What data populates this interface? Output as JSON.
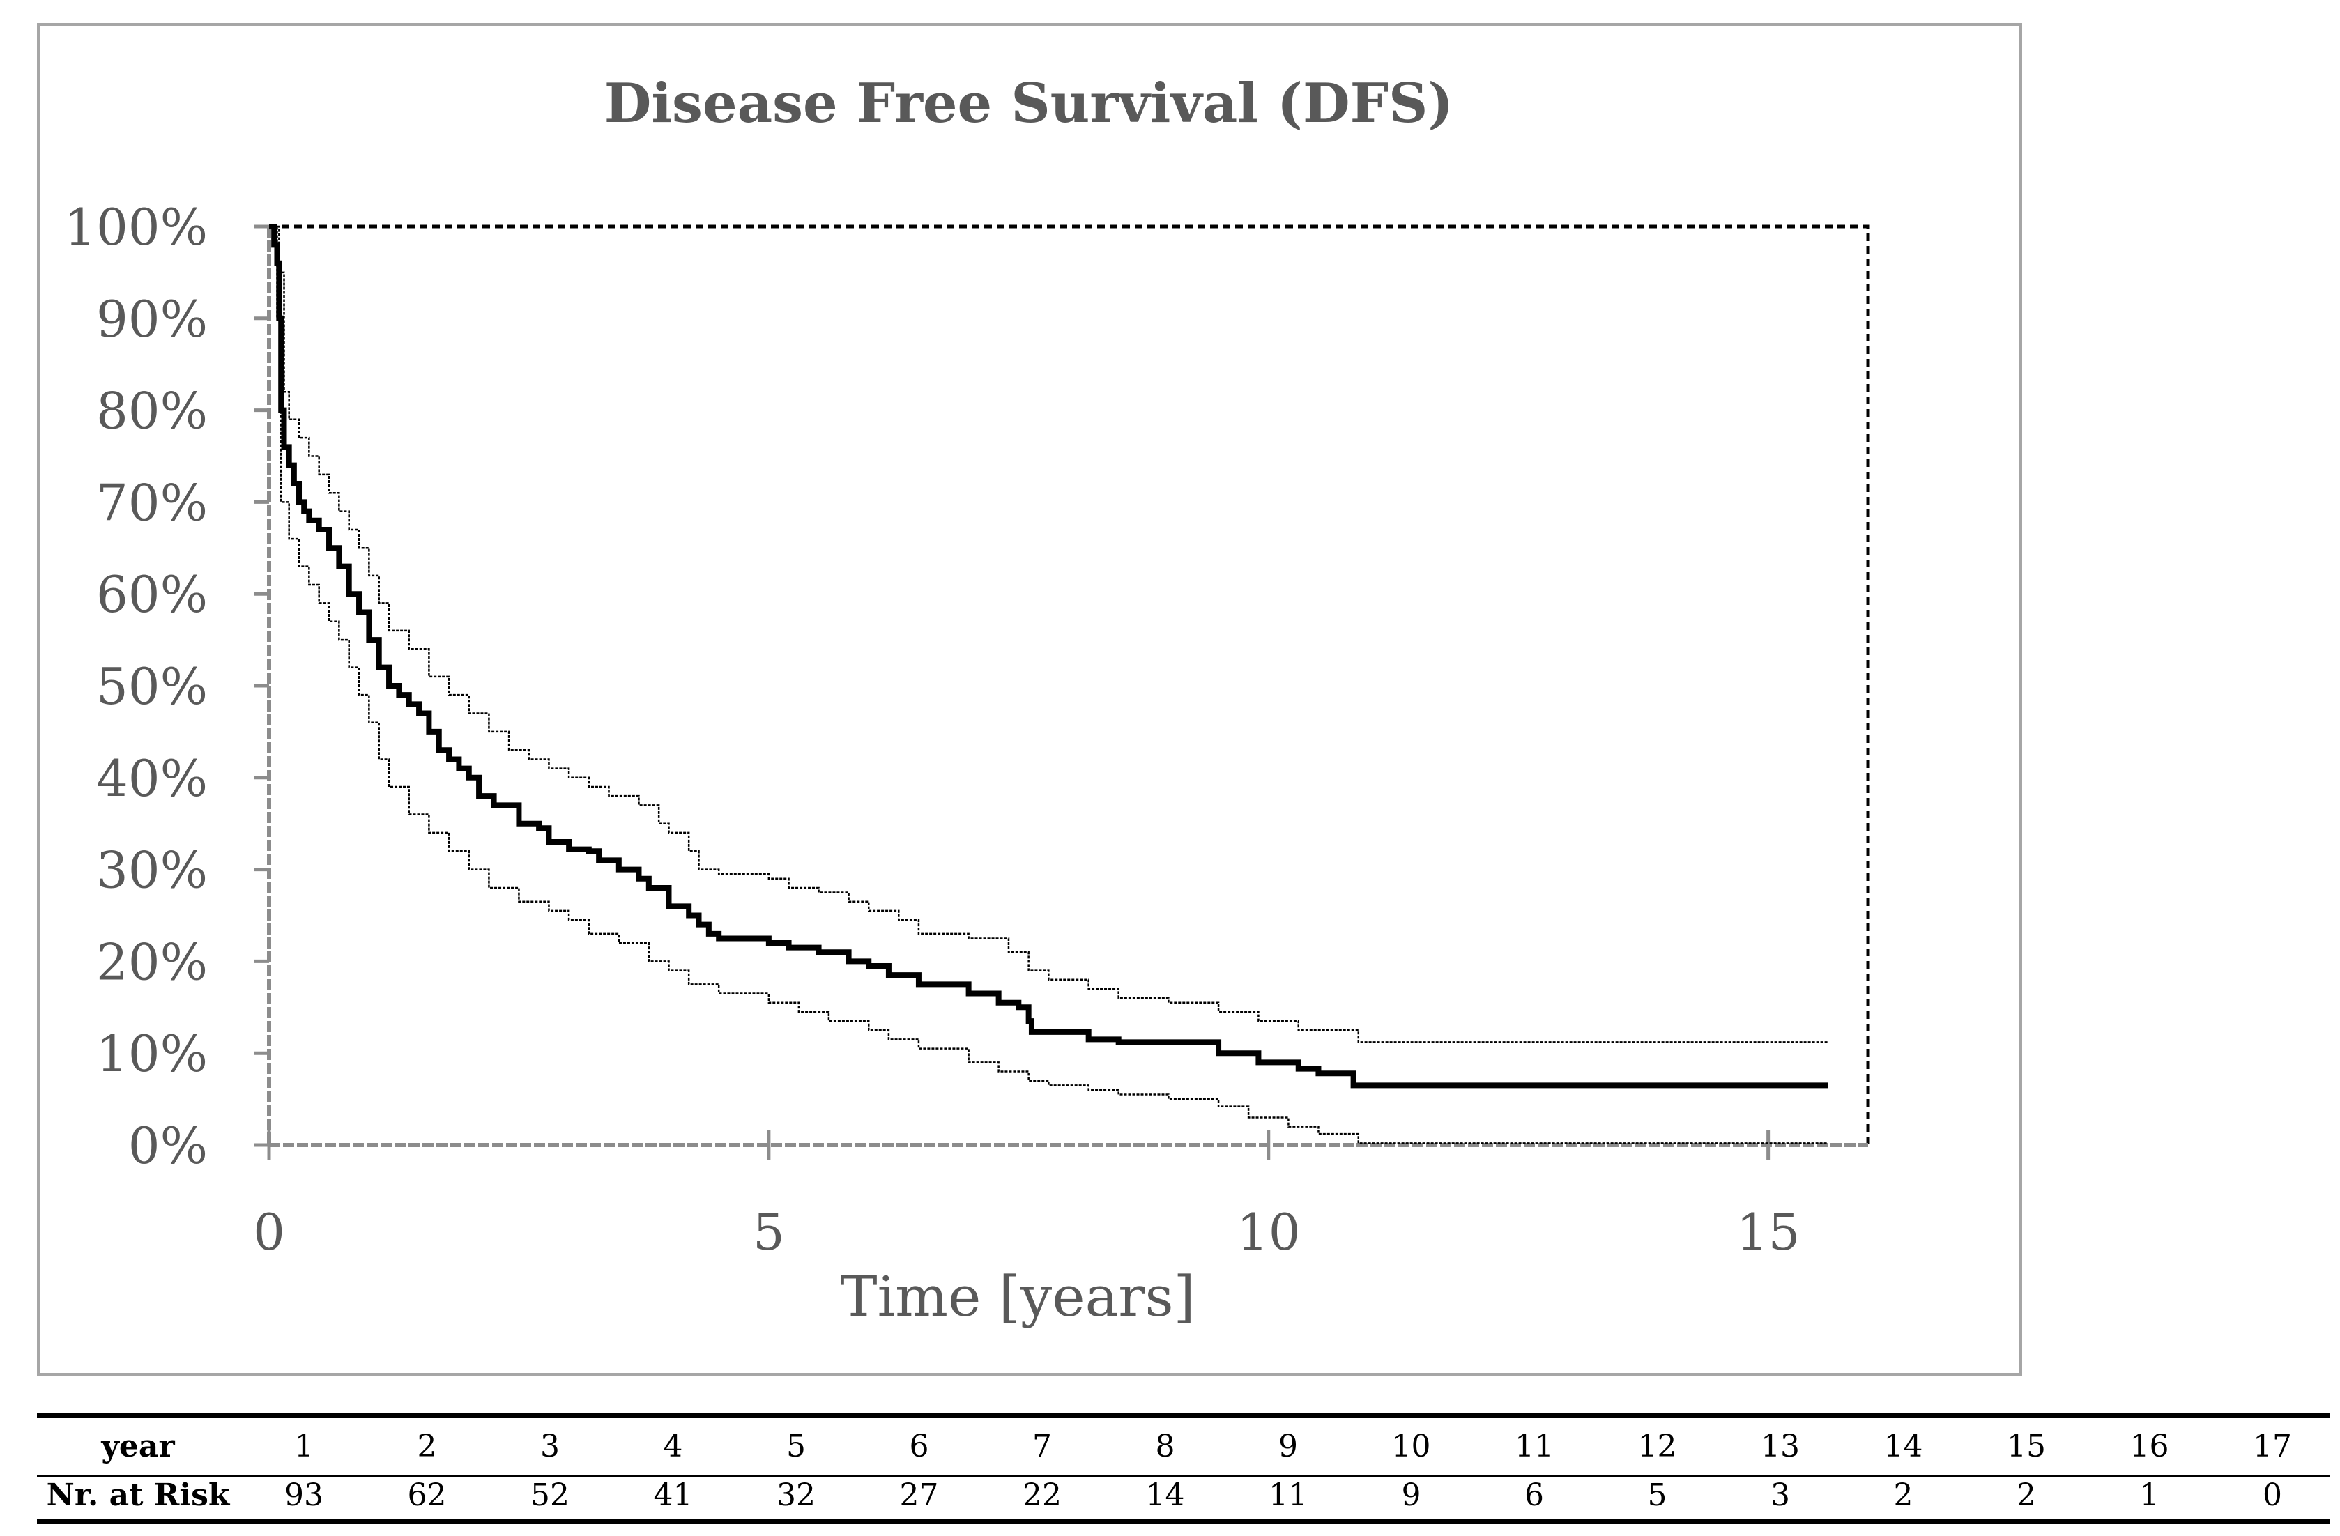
{
  "chart_data": {
    "type": "line",
    "title": "Disease Free Survival (DFS)",
    "xlabel": "Time [years]",
    "ylabel": "",
    "xlim": [
      0,
      16
    ],
    "ylim": [
      0,
      1
    ],
    "x_ticks": [
      "0",
      "5",
      "10",
      "15"
    ],
    "x_tick_values": [
      0,
      5,
      10,
      15
    ],
    "y_ticks": [
      "0%",
      "10%",
      "20%",
      "30%",
      "40%",
      "50%",
      "60%",
      "70%",
      "80%",
      "90%",
      "100%"
    ],
    "y_tick_values": [
      0,
      0.1,
      0.2,
      0.3,
      0.4,
      0.5,
      0.6,
      0.7,
      0.8,
      0.9,
      1.0
    ],
    "series": [
      {
        "role": "estimate",
        "step": true,
        "color": "#000000",
        "x": [
          0,
          0.05,
          0.08,
          0.1,
          0.12,
          0.15,
          0.2,
          0.25,
          0.3,
          0.35,
          0.4,
          0.5,
          0.6,
          0.7,
          0.8,
          0.9,
          1.0,
          1.1,
          1.2,
          1.3,
          1.4,
          1.5,
          1.6,
          1.7,
          1.8,
          1.9,
          2.0,
          2.1,
          2.25,
          2.5,
          2.7,
          2.8,
          3.0,
          3.2,
          3.3,
          3.5,
          3.7,
          3.8,
          4.0,
          4.2,
          4.3,
          4.4,
          4.5,
          5.0,
          5.2,
          5.5,
          5.8,
          6.0,
          6.2,
          6.5,
          7.0,
          7.3,
          7.5,
          7.6,
          7.63,
          8.2,
          8.5,
          9.0,
          9.5,
          9.9,
          10.3,
          10.5,
          10.85,
          15.6
        ],
        "y": [
          1.0,
          0.98,
          0.96,
          0.9,
          0.8,
          0.76,
          0.74,
          0.72,
          0.7,
          0.69,
          0.68,
          0.67,
          0.65,
          0.63,
          0.6,
          0.58,
          0.55,
          0.52,
          0.5,
          0.49,
          0.48,
          0.47,
          0.45,
          0.43,
          0.42,
          0.41,
          0.4,
          0.38,
          0.37,
          0.35,
          0.345,
          0.33,
          0.322,
          0.32,
          0.31,
          0.3,
          0.29,
          0.28,
          0.26,
          0.25,
          0.24,
          0.23,
          0.225,
          0.22,
          0.215,
          0.21,
          0.2,
          0.195,
          0.185,
          0.175,
          0.165,
          0.155,
          0.15,
          0.135,
          0.123,
          0.115,
          0.112,
          0.112,
          0.1,
          0.09,
          0.083,
          0.078,
          0.065,
          0.065
        ]
      },
      {
        "role": "upper-ci",
        "step": true,
        "color": "#000000",
        "x": [
          0,
          0.1,
          0.15,
          0.2,
          0.3,
          0.4,
          0.5,
          0.6,
          0.7,
          0.8,
          0.9,
          1.0,
          1.1,
          1.2,
          1.4,
          1.6,
          1.8,
          2.0,
          2.2,
          2.4,
          2.6,
          2.8,
          3.0,
          3.2,
          3.4,
          3.5,
          3.7,
          3.9,
          4.0,
          4.2,
          4.3,
          4.5,
          5.0,
          5.2,
          5.5,
          5.8,
          6.0,
          6.3,
          6.5,
          7.0,
          7.4,
          7.6,
          7.8,
          8.2,
          8.5,
          9.0,
          9.5,
          9.9,
          10.3,
          10.9,
          15.6
        ],
        "y": [
          1.0,
          0.95,
          0.82,
          0.79,
          0.77,
          0.75,
          0.73,
          0.71,
          0.69,
          0.67,
          0.65,
          0.62,
          0.59,
          0.56,
          0.54,
          0.51,
          0.49,
          0.47,
          0.45,
          0.43,
          0.42,
          0.41,
          0.4,
          0.39,
          0.38,
          0.38,
          0.37,
          0.35,
          0.34,
          0.32,
          0.3,
          0.295,
          0.29,
          0.28,
          0.275,
          0.265,
          0.255,
          0.245,
          0.23,
          0.225,
          0.21,
          0.19,
          0.18,
          0.17,
          0.16,
          0.155,
          0.145,
          0.135,
          0.125,
          0.112,
          0.112
        ]
      },
      {
        "role": "lower-ci",
        "step": true,
        "color": "#000000",
        "x": [
          0,
          0.08,
          0.12,
          0.2,
          0.3,
          0.4,
          0.5,
          0.6,
          0.7,
          0.8,
          0.9,
          1.0,
          1.1,
          1.2,
          1.4,
          1.6,
          1.8,
          2.0,
          2.2,
          2.5,
          2.8,
          3.0,
          3.2,
          3.5,
          3.8,
          4.0,
          4.2,
          4.5,
          5.0,
          5.3,
          5.6,
          6.0,
          6.2,
          6.5,
          7.0,
          7.3,
          7.6,
          7.8,
          8.2,
          8.5,
          9.0,
          9.5,
          9.8,
          10.2,
          10.5,
          10.9,
          15.6
        ],
        "y": [
          1.0,
          0.9,
          0.7,
          0.66,
          0.63,
          0.61,
          0.59,
          0.57,
          0.55,
          0.52,
          0.49,
          0.46,
          0.42,
          0.39,
          0.36,
          0.34,
          0.32,
          0.3,
          0.28,
          0.265,
          0.255,
          0.245,
          0.23,
          0.22,
          0.2,
          0.19,
          0.175,
          0.165,
          0.155,
          0.145,
          0.135,
          0.125,
          0.115,
          0.105,
          0.09,
          0.08,
          0.07,
          0.065,
          0.06,
          0.055,
          0.05,
          0.042,
          0.03,
          0.02,
          0.012,
          0.002,
          0.002
        ]
      }
    ],
    "grid": false,
    "legend": "none"
  },
  "risk_table": {
    "row_labels": [
      "year",
      "Nr. at Risk"
    ],
    "years": [
      "1",
      "2",
      "3",
      "4",
      "5",
      "6",
      "7",
      "8",
      "9",
      "10",
      "11",
      "12",
      "13",
      "14",
      "15",
      "16",
      "17"
    ],
    "at_risk": [
      "93",
      "62",
      "52",
      "41",
      "32",
      "27",
      "22",
      "14",
      "11",
      "9",
      "6",
      "5",
      "3",
      "2",
      "2",
      "1",
      "0"
    ]
  }
}
